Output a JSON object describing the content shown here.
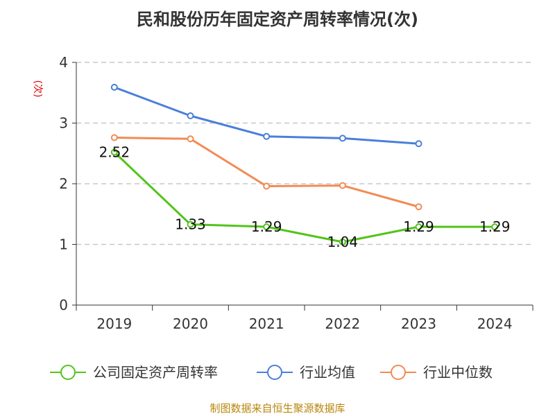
{
  "title": "民和股份历年固定资产周转率情况(次)",
  "source": "制图数据来自恒生聚源数据库",
  "chart_data": {
    "type": "line",
    "title": "民和股份历年固定资产周转率情况(次)",
    "ylabel": "(次)",
    "xlabel": "",
    "categories": [
      "2019",
      "2020",
      "2021",
      "2022",
      "2023",
      "2024"
    ],
    "ylim": [
      0,
      4
    ],
    "yticks": [
      0,
      1,
      2,
      3,
      4
    ],
    "grid": true,
    "legend_position": "bottom",
    "series": [
      {
        "name": "公司固定资产周转率",
        "color": "#52c41a",
        "values": [
          2.52,
          1.33,
          1.29,
          1.04,
          1.29,
          1.29
        ],
        "labels": [
          "2.52",
          "1.33",
          "1.29",
          "1.04",
          "1.29",
          "1.29"
        ]
      },
      {
        "name": "行业均值",
        "color": "#4a7fd9",
        "values": [
          3.59,
          3.12,
          2.78,
          2.75,
          2.66,
          null
        ]
      },
      {
        "name": "行业中位数",
        "color": "#f28b54",
        "values": [
          2.76,
          2.74,
          1.96,
          1.97,
          1.62,
          null
        ]
      }
    ]
  }
}
